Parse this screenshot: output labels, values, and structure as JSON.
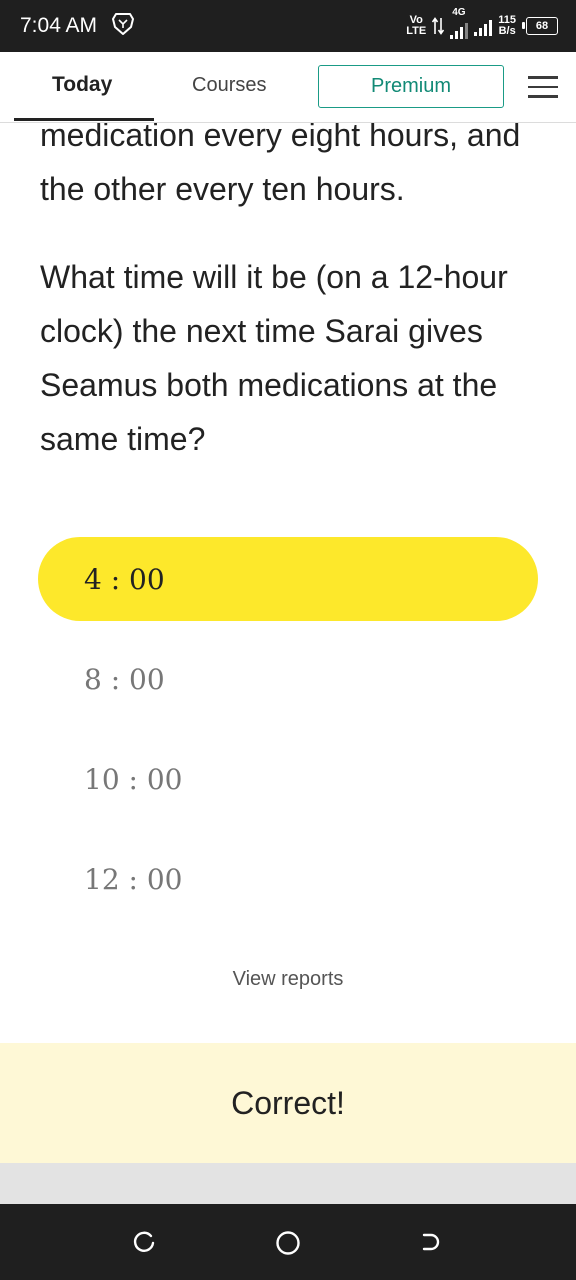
{
  "status_bar": {
    "time": "7:04 AM",
    "volte_top": "Vo",
    "volte_bottom": "LTE",
    "network": "4G",
    "speed_value": "115",
    "speed_unit": "B/s",
    "battery": "68"
  },
  "nav": {
    "today": "Today",
    "courses": "Courses",
    "premium": "Premium"
  },
  "content": {
    "prev_text": "medication every eight hours, and the other every ten hours.",
    "question": "What time will it be (on a 12-hour clock) the next time Sarai gives Seamus both medications at the same time?",
    "options": [
      {
        "label": "4 : 00",
        "selected": true
      },
      {
        "label": "8 : 00",
        "selected": false
      },
      {
        "label": "10 : 00",
        "selected": false
      },
      {
        "label": "12 : 00",
        "selected": false
      }
    ],
    "view_reports": "View reports"
  },
  "feedback": {
    "text": "Correct!",
    "color": "#fef8d6"
  },
  "colors": {
    "selected_option": "#fde82b",
    "premium_accent": "#1a9b86"
  },
  "icons": {
    "status": [
      "brave-lion-icon",
      "signal-icon",
      "battery-icon"
    ],
    "system_nav": [
      "recent-apps-icon",
      "home-icon",
      "back-icon"
    ],
    "menu": "hamburger-menu-icon"
  }
}
